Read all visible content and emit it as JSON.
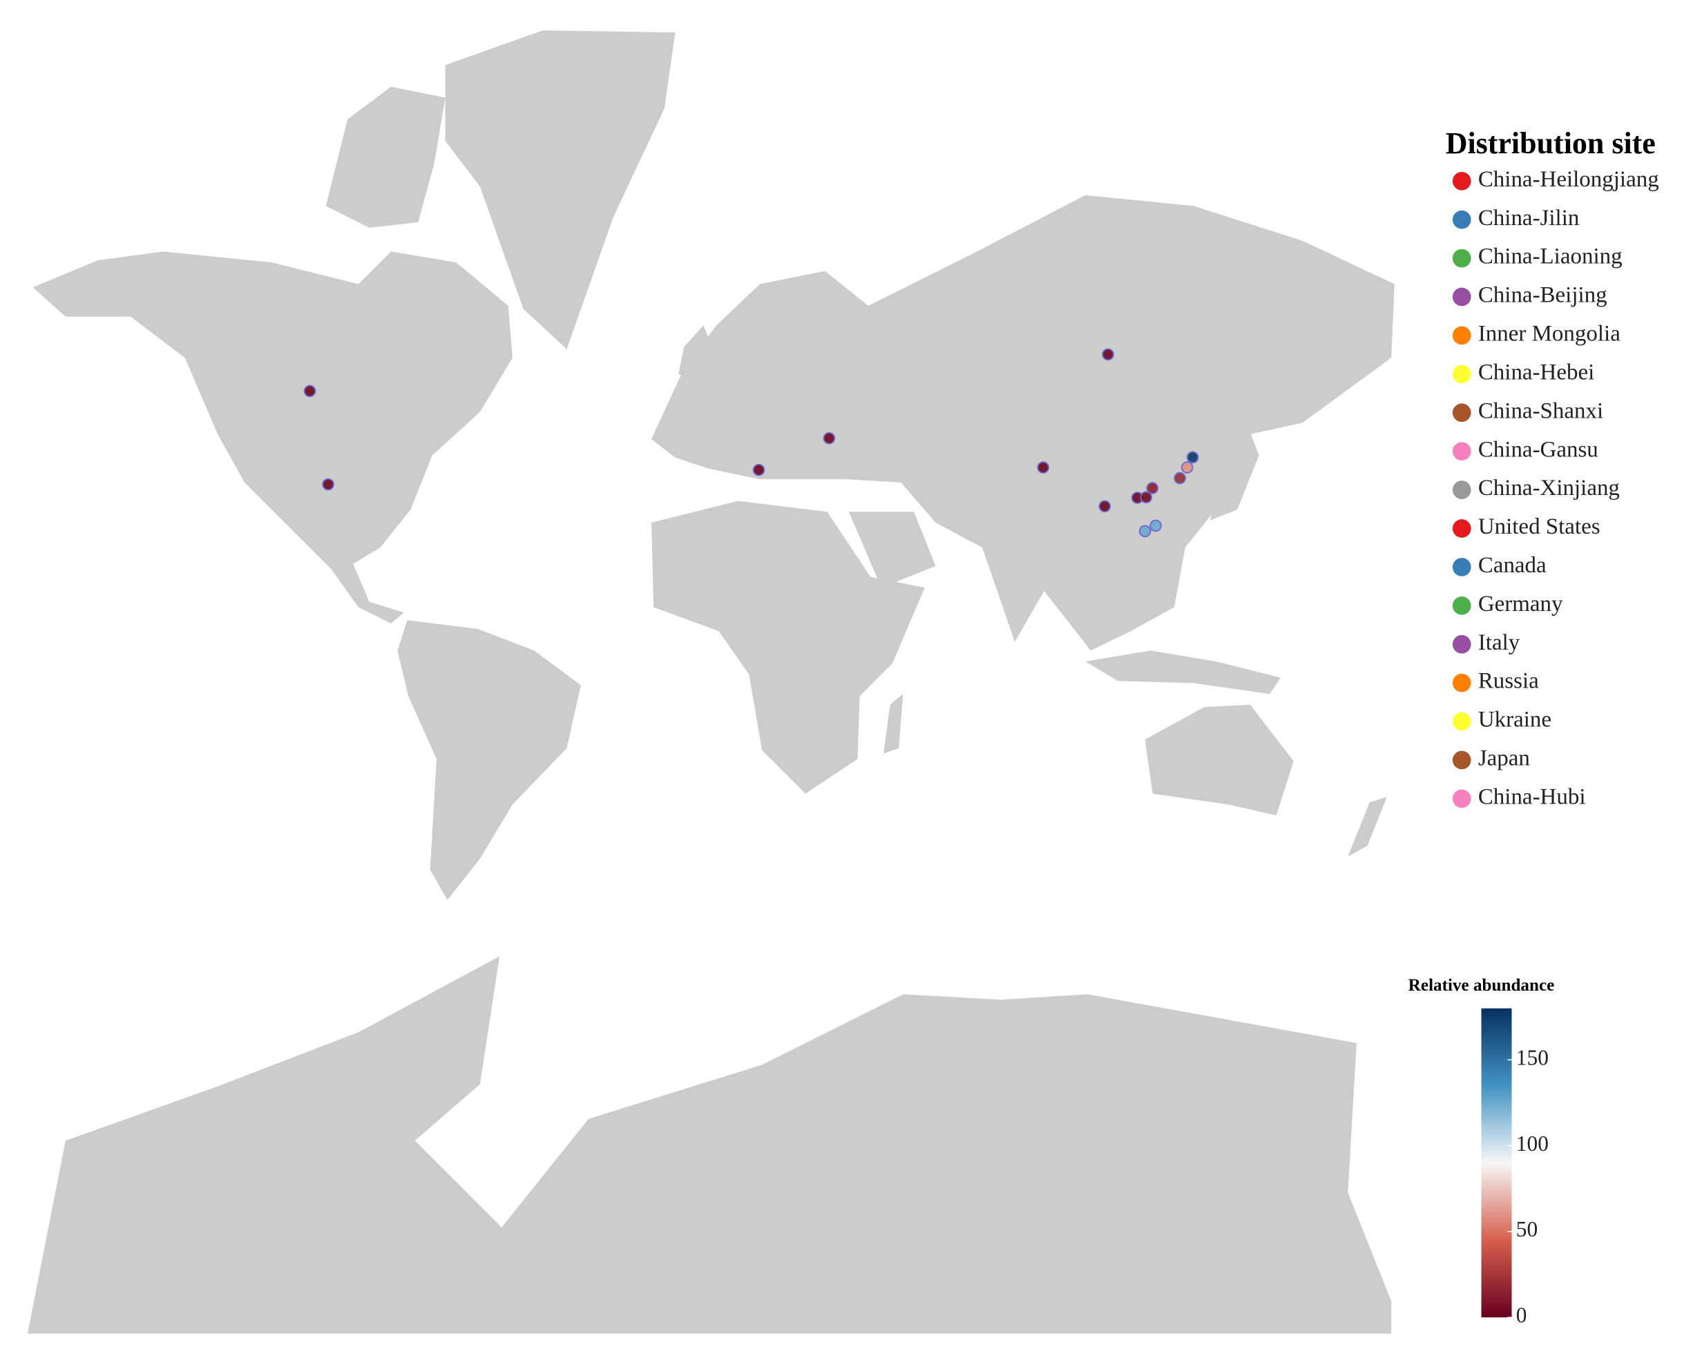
{
  "chart_data": {
    "type": "map",
    "legend": {
      "title": "Distribution site",
      "items": [
        {
          "name": "China-Heilongjiang",
          "color": "#e41a1c"
        },
        {
          "name": "China-Jilin",
          "color": "#377eb8"
        },
        {
          "name": "China-Liaoning",
          "color": "#4daf4a"
        },
        {
          "name": "China-Beijing",
          "color": "#984ea3"
        },
        {
          "name": "Inner Mongolia",
          "color": "#ff7f00"
        },
        {
          "name": "China-Hebei",
          "color": "#ffff33"
        },
        {
          "name": "China-Shanxi",
          "color": "#a65628"
        },
        {
          "name": "China-Gansu",
          "color": "#f781bf"
        },
        {
          "name": "China-Xinjiang",
          "color": "#999999"
        },
        {
          "name": "United States",
          "color": "#e41a1c"
        },
        {
          "name": "Canada",
          "color": "#377eb8"
        },
        {
          "name": "Germany",
          "color": "#4daf4a"
        },
        {
          "name": "Italy",
          "color": "#984ea3"
        },
        {
          "name": "Russia",
          "color": "#ff7f00"
        },
        {
          "name": "Ukraine",
          "color": "#ffff33"
        },
        {
          "name": "Japan",
          "color": "#a65628"
        },
        {
          "name": "China-Hubi",
          "color": "#f781bf"
        }
      ]
    },
    "colorbar": {
      "title": "Relative abundance",
      "ylim": [
        0,
        180
      ],
      "yticks": [
        0,
        50,
        100,
        150
      ],
      "colormap": [
        "#67001f",
        "#d6604d",
        "#f7f7f7",
        "#4393c3",
        "#053061"
      ]
    },
    "points": [
      {
        "lon": -110,
        "lat": 56,
        "value": 2
      },
      {
        "lon": -105,
        "lat": 39,
        "value": 2
      },
      {
        "lon": 12.5,
        "lat": 42,
        "value": 2
      },
      {
        "lon": 31.7,
        "lat": 48.1,
        "value": 2
      },
      {
        "lon": 107.8,
        "lat": 61.2,
        "value": 2
      },
      {
        "lon": 90.1,
        "lat": 42.5,
        "value": 2
      },
      {
        "lon": 106.9,
        "lat": 34.2,
        "value": 2
      },
      {
        "lon": 115.8,
        "lat": 36.1,
        "value": 2
      },
      {
        "lon": 118.2,
        "lat": 36.2,
        "value": 5
      },
      {
        "lon": 119.9,
        "lat": 38.2,
        "value": 15
      },
      {
        "lon": 127.4,
        "lat": 40.3,
        "value": 20
      },
      {
        "lon": 129.4,
        "lat": 42.5,
        "value": 60
      },
      {
        "lon": 130.9,
        "lat": 44.5,
        "value": 175
      },
      {
        "lon": 117.9,
        "lat": 28.4,
        "value": 125
      },
      {
        "lon": 120.8,
        "lat": 29.7,
        "value": 125
      }
    ]
  }
}
